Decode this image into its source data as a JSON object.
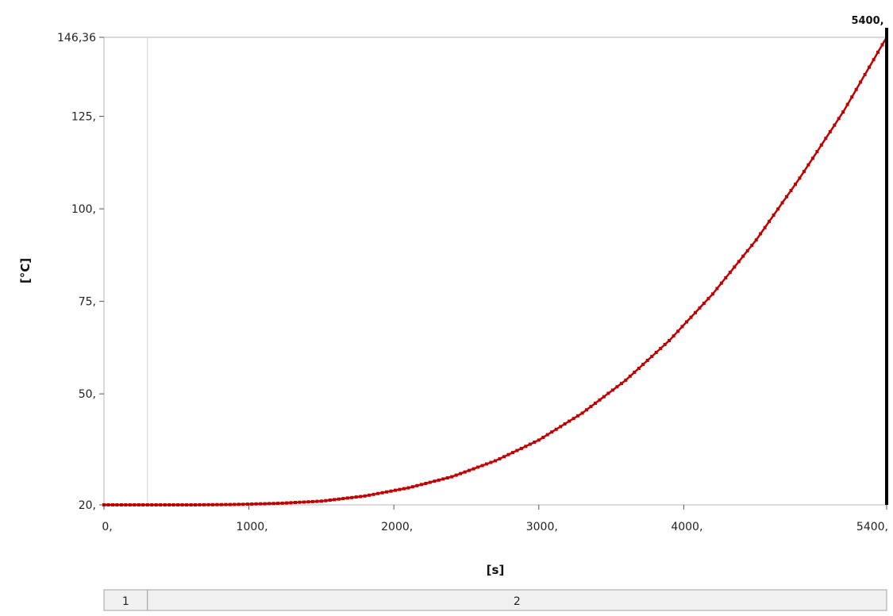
{
  "chart_data": {
    "type": "line",
    "title": "",
    "xlabel": "[s]",
    "ylabel": "[°C]",
    "xlim": [
      0,
      5400
    ],
    "ylim": [
      20,
      146.36
    ],
    "x_ticks": [
      {
        "value": 0,
        "label": "0,"
      },
      {
        "value": 1000,
        "label": "1000,"
      },
      {
        "value": 2000,
        "label": "2000,"
      },
      {
        "value": 3000,
        "label": "3000,"
      },
      {
        "value": 4000,
        "label": "4000,"
      },
      {
        "value": 5400,
        "label": "5400,"
      }
    ],
    "y_ticks": [
      {
        "value": 20,
        "label": "20,"
      },
      {
        "value": 50,
        "label": "50,"
      },
      {
        "value": 75,
        "label": "75,"
      },
      {
        "value": 100,
        "label": "100,"
      },
      {
        "value": 125,
        "label": "125,"
      },
      {
        "value": 146.36,
        "label": "146,36"
      }
    ],
    "grid": false,
    "step_boundary_x": 300,
    "cursor": {
      "x": 5400,
      "label": "5400,"
    },
    "steps": [
      {
        "label": "1",
        "x_start": 0,
        "x_end": 300
      },
      {
        "label": "2",
        "x_start": 300,
        "x_end": 5400
      }
    ],
    "series": [
      {
        "color": "#c00000",
        "x": [
          0,
          300,
          600,
          900,
          1200,
          1500,
          1800,
          2100,
          2400,
          2700,
          3000,
          3300,
          3600,
          3900,
          4200,
          4500,
          4800,
          5100,
          5400
        ],
        "y": [
          20.0,
          20.0,
          20.0,
          20.1,
          20.4,
          21.0,
          22.4,
          24.6,
          27.6,
          31.9,
          37.5,
          44.8,
          53.7,
          64.4,
          77.0,
          91.6,
          108.3,
          126.2,
          146.36
        ]
      }
    ]
  }
}
